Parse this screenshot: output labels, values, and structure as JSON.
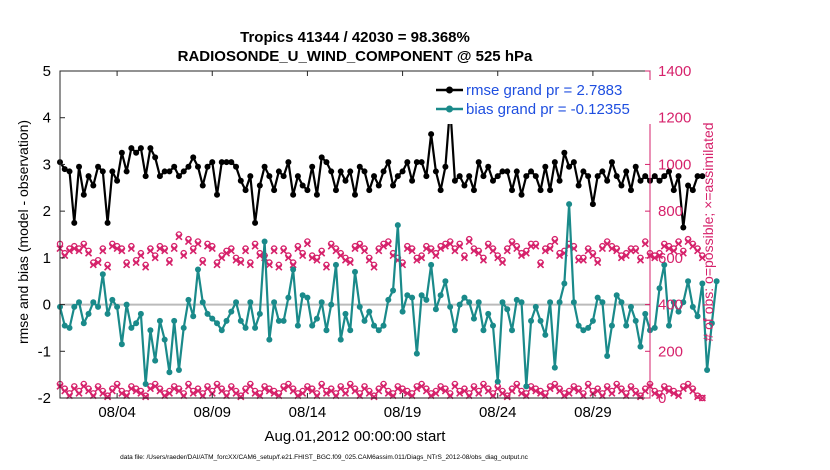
{
  "chart_data": {
    "type": "line",
    "title": "Tropics 41344 / 42030 = 98.368%",
    "subtitle": "RADIOSONDE_U_WIND_COMPONENT @ 525 hPa",
    "xlabel": "Aug.01,2012 00:00:00 start",
    "ylabel": "rmse and bias (model - observation)",
    "ylabel_right": "# of obs: o=possible; ×=assimilated",
    "footer": "data file: /Users/raeder/DAI/ATM_forcXX/CAM6_setup/f.e21.FHIST_BGC.f09_025.CAM6assim.011/Diags_NTrS_2012-08/obs_diag_output.nc",
    "xticks": [
      "08/04",
      "08/09",
      "08/14",
      "08/19",
      "08/24",
      "08/29"
    ],
    "xtick_days": [
      4,
      9,
      14,
      19,
      24,
      29
    ],
    "x_start_day": 1.0,
    "x_step_days": 0.25,
    "xlim_days": [
      1,
      32
    ],
    "ylim": [
      -2,
      5
    ],
    "yticks": [
      -2,
      -1,
      0,
      1,
      2,
      3,
      4,
      5
    ],
    "ylim_right": [
      0,
      1400
    ],
    "yticks_right": [
      0,
      200,
      400,
      600,
      800,
      1000,
      1200,
      1400
    ],
    "zero_line": 0,
    "legend_position": "top-right",
    "colors": {
      "rmse": "#000000",
      "bias": "#1a8a8a",
      "obs": "#d6226b",
      "legend_text": "#1f4fe0",
      "zero": "#bbbbbb"
    },
    "series": [
      {
        "name": "rmse grand pr = 2.7883",
        "axis": "left",
        "values": [
          3.05,
          2.9,
          2.85,
          1.75,
          2.95,
          2.35,
          2.75,
          2.55,
          2.95,
          2.85,
          1.75,
          2.85,
          2.65,
          3.25,
          2.85,
          3.35,
          3.25,
          3.35,
          2.75,
          3.35,
          3.15,
          2.75,
          2.85,
          2.85,
          2.95,
          2.75,
          2.85,
          2.95,
          3.15,
          2.95,
          2.55,
          2.95,
          3.05,
          2.35,
          3.05,
          3.05,
          3.05,
          2.95,
          2.65,
          2.45,
          2.75,
          1.75,
          2.55,
          2.95,
          2.75,
          2.45,
          2.85,
          2.75,
          3.05,
          2.35,
          2.75,
          2.55,
          2.45,
          2.95,
          2.35,
          3.15,
          3.05,
          2.85,
          2.45,
          2.85,
          2.65,
          2.85,
          2.35,
          2.95,
          2.85,
          2.45,
          2.75,
          2.55,
          2.85,
          3.05,
          2.55,
          2.75,
          2.85,
          3.05,
          2.65,
          3.05,
          3.05,
          2.75,
          3.65,
          2.85,
          2.45,
          2.95,
          4.25,
          2.65,
          2.75,
          2.55,
          2.75,
          2.45,
          3.05,
          2.75,
          2.95,
          2.65,
          2.75,
          2.85,
          2.85,
          2.45,
          2.85,
          2.35,
          2.75,
          2.85,
          2.75,
          2.45,
          2.95,
          2.45,
          3.05,
          2.65,
          3.25,
          2.95,
          3.05,
          2.55,
          2.85,
          2.75,
          2.15,
          2.75,
          2.85,
          2.65,
          3.05,
          2.75,
          2.55,
          2.85,
          2.45,
          2.95,
          2.65,
          2.75,
          2.65,
          2.75,
          2.65,
          2.75,
          2.85,
          2.45,
          2.75,
          1.65,
          2.55,
          2.45,
          2.75,
          2.75
        ]
      },
      {
        "name": "bias grand pr = -0.12355",
        "axis": "left",
        "values": [
          -0.05,
          -0.45,
          -0.5,
          -0.05,
          0.05,
          -0.4,
          -0.2,
          0.05,
          -0.05,
          0.65,
          -0.2,
          0.1,
          -0.05,
          -0.85,
          0.0,
          -0.5,
          -0.4,
          -0.2,
          -1.7,
          -0.55,
          -1.2,
          -0.35,
          -0.75,
          -1.45,
          -0.35,
          -1.4,
          -0.5,
          0.1,
          -0.25,
          0.75,
          0.05,
          -0.2,
          -0.3,
          -0.4,
          -0.55,
          -0.35,
          -0.15,
          0.05,
          -0.35,
          -0.5,
          0.05,
          -0.5,
          -0.2,
          1.35,
          -0.75,
          0.05,
          -0.35,
          -0.35,
          0.15,
          0.75,
          -0.45,
          0.2,
          0.15,
          -0.45,
          -0.3,
          0.05,
          -0.55,
          0.0,
          0.85,
          -0.75,
          -0.2,
          -0.55,
          0.7,
          -0.05,
          -0.35,
          -0.15,
          -0.45,
          -0.55,
          -0.45,
          0.1,
          0.3,
          1.7,
          -0.15,
          0.2,
          0.15,
          -1.05,
          0.2,
          0.1,
          0.85,
          -0.1,
          0.2,
          0.5,
          -0.05,
          -0.55,
          0.0,
          0.15,
          0.05,
          -0.3,
          0.05,
          -0.55,
          -0.2,
          -0.45,
          -1.65,
          0.05,
          -0.1,
          -0.55,
          0.1,
          0.05,
          -1.75,
          -0.35,
          -0.05,
          -0.35,
          -0.65,
          0.05,
          -1.35,
          0.05,
          0.45,
          2.15,
          0.05,
          -0.45,
          -0.55,
          -0.5,
          -0.35,
          0.15,
          0.05,
          -1.1,
          -0.45,
          0.2,
          0.05,
          -0.45,
          -0.05,
          -0.35,
          -0.9,
          -0.2,
          -0.55,
          -0.5,
          0.35,
          0.85,
          -0.45,
          0.05,
          -0.15,
          0.05,
          0.5,
          -0.05,
          -0.25,
          0.45,
          -1.4,
          -0.4,
          0.5
        ]
      }
    ],
    "obs_possible": [
      660,
      620,
      640,
      650,
      640,
      660,
      630,
      580,
      590,
      640,
      570,
      660,
      650,
      640,
      580,
      650,
      590,
      620,
      570,
      640,
      610,
      650,
      640,
      590,
      650,
      700,
      620,
      680,
      640,
      670,
      590,
      660,
      650,
      580,
      610,
      630,
      640,
      600,
      590,
      640,
      580,
      660,
      620,
      610,
      580,
      640,
      570,
      640,
      610,
      580,
      650,
      620,
      670,
      610,
      600,
      630,
      570,
      660,
      640,
      620,
      600,
      590,
      650,
      660,
      640,
      600,
      570,
      640,
      660,
      670,
      620,
      600,
      580,
      650,
      640,
      600,
      610,
      650,
      640,
      620,
      650,
      660,
      670,
      640,
      660,
      610,
      680,
      640,
      630,
      600,
      660,
      640,
      610,
      590,
      640,
      670,
      650,
      620,
      630,
      660,
      660,
      580,
      640,
      650,
      680,
      620,
      630,
      660,
      650,
      600,
      600,
      640,
      620,
      590,
      650,
      670,
      650,
      640,
      610,
      620,
      640,
      640,
      600,
      670,
      620,
      610,
      620,
      660,
      650,
      640,
      670,
      630,
      680,
      660,
      640,
      610
    ],
    "obs_assimilated": [
      640,
      610,
      630,
      640,
      630,
      650,
      620,
      570,
      580,
      630,
      560,
      650,
      640,
      630,
      570,
      640,
      580,
      610,
      560,
      630,
      600,
      640,
      630,
      580,
      640,
      690,
      610,
      670,
      630,
      660,
      580,
      650,
      640,
      570,
      600,
      620,
      630,
      590,
      580,
      630,
      570,
      650,
      610,
      600,
      570,
      630,
      560,
      630,
      600,
      570,
      640,
      610,
      660,
      600,
      590,
      620,
      560,
      650,
      630,
      610,
      590,
      580,
      640,
      650,
      630,
      590,
      560,
      630,
      650,
      660,
      610,
      590,
      570,
      640,
      630,
      590,
      600,
      640,
      630,
      610,
      640,
      650,
      660,
      630,
      650,
      600,
      670,
      630,
      620,
      590,
      650,
      630,
      600,
      580,
      630,
      660,
      640,
      610,
      620,
      650,
      650,
      570,
      630,
      640,
      670,
      610,
      620,
      650,
      640,
      590,
      590,
      630,
      610,
      580,
      640,
      660,
      640,
      630,
      600,
      610,
      630,
      630,
      590,
      660,
      610,
      600,
      610,
      650,
      640,
      630,
      660,
      620,
      670,
      650,
      630,
      600
    ],
    "obs_low_possible": [
      60,
      40,
      20,
      50,
      30,
      60,
      40,
      20,
      50,
      30,
      10,
      40,
      60,
      30,
      20,
      50,
      40,
      30,
      10,
      50,
      60,
      40,
      20,
      30,
      50,
      40,
      20,
      60,
      30,
      40,
      20,
      50,
      30,
      60,
      40,
      20,
      50,
      30,
      10,
      40,
      60,
      30,
      20,
      50,
      40,
      30,
      20,
      50,
      60,
      40,
      20,
      30,
      50,
      40,
      20,
      60,
      30,
      40,
      20,
      50,
      30,
      60,
      40,
      20,
      50,
      30,
      10,
      40,
      60,
      30,
      20,
      50,
      40,
      30,
      20,
      50,
      60,
      40,
      20,
      30,
      50,
      40,
      20,
      60,
      30,
      40,
      20,
      50,
      30,
      60,
      40,
      20,
      50,
      30,
      10,
      40,
      60,
      30,
      20,
      50,
      40,
      30,
      20,
      50,
      60,
      40,
      20,
      30,
      50,
      40,
      20,
      60,
      30,
      40,
      20,
      50,
      30,
      60,
      40,
      20,
      50,
      30,
      10,
      40,
      60,
      30,
      20,
      50,
      40,
      30,
      20,
      50,
      60,
      40,
      10,
      0
    ],
    "obs_low_assimilated": [
      50,
      30,
      10,
      40,
      20,
      50,
      30,
      10,
      40,
      20,
      5,
      30,
      50,
      20,
      10,
      40,
      30,
      20,
      5,
      40,
      50,
      30,
      10,
      20,
      40,
      30,
      10,
      50,
      20,
      30,
      10,
      40,
      20,
      50,
      30,
      10,
      40,
      20,
      5,
      30,
      50,
      20,
      10,
      40,
      30,
      20,
      10,
      40,
      50,
      30,
      10,
      20,
      40,
      30,
      10,
      50,
      20,
      30,
      10,
      40,
      20,
      50,
      30,
      10,
      40,
      20,
      5,
      30,
      50,
      20,
      10,
      40,
      30,
      20,
      10,
      40,
      50,
      30,
      10,
      20,
      40,
      30,
      10,
      50,
      20,
      30,
      10,
      40,
      20,
      50,
      30,
      10,
      40,
      20,
      5,
      30,
      50,
      20,
      10,
      40,
      30,
      20,
      10,
      40,
      50,
      30,
      10,
      20,
      40,
      30,
      10,
      50,
      20,
      30,
      10,
      40,
      20,
      50,
      30,
      10,
      40,
      20,
      5,
      30,
      50,
      20,
      10,
      40,
      30,
      20,
      10,
      40,
      50,
      30,
      5,
      0
    ]
  }
}
